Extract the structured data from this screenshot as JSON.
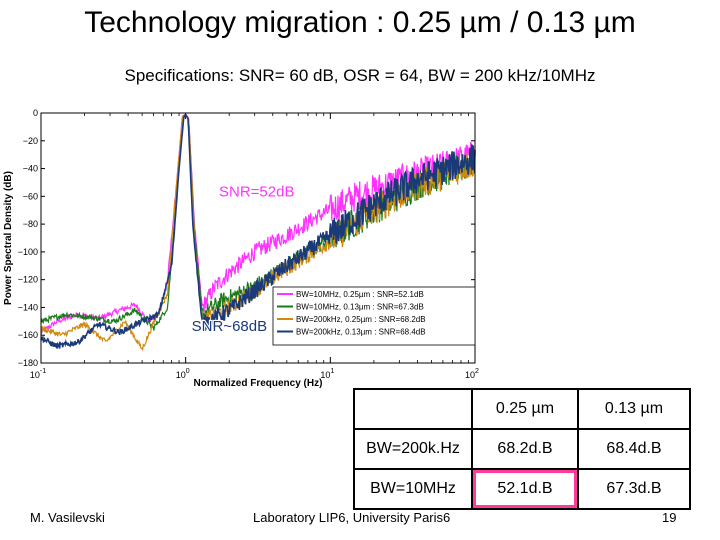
{
  "slide": {
    "title": "Technology migration : 0.25 µm / 0.13 µm",
    "subtitle": "Specifications: SNR= 60 dB, OSR = 64, BW = 200 kHz/10MHz",
    "author": "M. Vasilevski",
    "affiliation": "Laboratory LIP6, University Paris6",
    "page": "19"
  },
  "chart_data": {
    "type": "line",
    "xlabel": "Normalized Frequency (Hz)",
    "ylabel": "Power Spectral Density (dB)",
    "xscale": "log",
    "xlim": [
      0.1,
      100
    ],
    "ylim": [
      -180,
      0
    ],
    "xticks": [
      0.1,
      1,
      10,
      100
    ],
    "xtick_labels": [
      {
        "base": "10",
        "exp": "-1"
      },
      {
        "base": "10",
        "exp": "0"
      },
      {
        "base": "10",
        "exp": "1"
      },
      {
        "base": "10",
        "exp": "2"
      }
    ],
    "yticks": [
      0,
      -20,
      -40,
      -60,
      -80,
      -100,
      -120,
      -140,
      -160,
      -180
    ],
    "ytick_labels": [
      "0",
      "−20",
      "−40",
      "−60",
      "−80",
      "−100",
      "−120",
      "−140",
      "−160",
      "−180"
    ],
    "series": [
      {
        "name": "BW=10MHz, 0.25µm : SNR=52.1dB",
        "color": "#ff33ff",
        "x": [
          0.1,
          0.13,
          0.18,
          0.25,
          0.35,
          0.45,
          0.55,
          0.65,
          0.75,
          0.85,
          0.95,
          1.0,
          1.05,
          1.15,
          1.3,
          1.6,
          2,
          3,
          5,
          8,
          15,
          30,
          60,
          100
        ],
        "y": [
          -158,
          -150,
          -145,
          -148,
          -142,
          -138,
          -150,
          -145,
          -120,
          -60,
          -2,
          -1,
          -4,
          -80,
          -140,
          -125,
          -115,
          -100,
          -88,
          -75,
          -60,
          -48,
          -38,
          -30
        ]
      },
      {
        "name": "BW=10MHz, 0.13µm : SNR=67.3dB",
        "color": "#1a7a1a",
        "x": [
          0.1,
          0.15,
          0.22,
          0.32,
          0.45,
          0.6,
          0.75,
          0.85,
          0.95,
          1.0,
          1.05,
          1.15,
          1.3,
          1.8,
          3,
          5,
          10,
          20,
          40,
          100
        ],
        "y": [
          -150,
          -145,
          -147,
          -150,
          -142,
          -155,
          -140,
          -70,
          -3,
          -1,
          -5,
          -85,
          -145,
          -135,
          -125,
          -110,
          -90,
          -70,
          -52,
          -35
        ]
      },
      {
        "name": "BW=200kHz, 0.25µm : SNR=68.2dB",
        "color": "#d08a10",
        "x": [
          0.1,
          0.14,
          0.2,
          0.28,
          0.38,
          0.5,
          0.62,
          0.75,
          0.85,
          0.95,
          1.0,
          1.05,
          1.15,
          1.3,
          2,
          3,
          5,
          10,
          20,
          40,
          100
        ],
        "y": [
          -155,
          -160,
          -152,
          -165,
          -150,
          -170,
          -148,
          -130,
          -60,
          -3,
          -1,
          -5,
          -90,
          -150,
          -140,
          -128,
          -112,
          -92,
          -70,
          -52,
          -36
        ]
      },
      {
        "name": "BW=200kHz, 0.13µm : SNR=68.4dB",
        "color": "#1a3a7a",
        "x": [
          0.1,
          0.13,
          0.18,
          0.25,
          0.35,
          0.5,
          0.65,
          0.8,
          0.9,
          0.97,
          1.0,
          1.04,
          1.12,
          1.3,
          2,
          3,
          5,
          10,
          20,
          40,
          100
        ],
        "y": [
          -162,
          -168,
          -165,
          -152,
          -158,
          -150,
          -145,
          -110,
          -40,
          -3,
          -1,
          -4,
          -80,
          -152,
          -142,
          -128,
          -110,
          -88,
          -66,
          -48,
          -32
        ]
      }
    ],
    "annotations": [
      {
        "text": "SNR=52dB",
        "x": 1.7,
        "y": -60,
        "color": "#ff33ff"
      },
      {
        "text": "SNR~68dB",
        "x": 1.1,
        "y": -157,
        "color": "#1a3a7a"
      }
    ],
    "legend": "lower-right"
  },
  "table": {
    "headers": [
      "",
      "0.25 µm",
      "0.13 µm"
    ],
    "rows": [
      {
        "label": "BW=200k.Hz",
        "values": [
          "68.2d.B",
          "68.4d.B"
        ]
      },
      {
        "label": "BW=10MHz",
        "values": [
          "52.1d.B",
          "67.3d.B"
        ]
      }
    ]
  }
}
